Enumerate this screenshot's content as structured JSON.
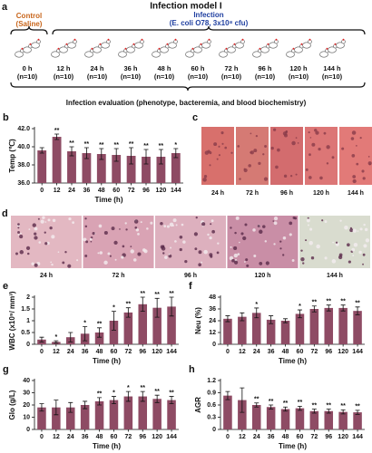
{
  "panel_a": {
    "panel": "a",
    "title": "Infection model I",
    "control": "Control",
    "control_sub": "(Saline)",
    "infection": "Infection",
    "infection_sub": "(E. coli O78, 3x10⁸ cfu)",
    "timepoints": [
      {
        "time": "0 h",
        "n": "(n=10)"
      },
      {
        "time": "12 h",
        "n": "(n=10)"
      },
      {
        "time": "24 h",
        "n": "(n=10)"
      },
      {
        "time": "36 h",
        "n": "(n=10)"
      },
      {
        "time": "48 h",
        "n": "(n=10)"
      },
      {
        "time": "60 h",
        "n": "(n=10)"
      },
      {
        "time": "72 h",
        "n": "(n=10)"
      },
      {
        "time": "96 h",
        "n": "(n=10)"
      },
      {
        "time": "120 h",
        "n": "(n=10)"
      },
      {
        "time": "144 h",
        "n": "(n=10)"
      }
    ],
    "evaluation": "Infection evaluation (phenotype, bacteremia, and blood biochemistry)"
  },
  "chart_data": [
    {
      "type": "bar",
      "panel": "b",
      "xlabel": "Time (h)",
      "ylabel": "Temp (℃)",
      "color": "#8e4b64",
      "categories": [
        0,
        12,
        24,
        36,
        48,
        60,
        72,
        96,
        120,
        144
      ],
      "values": [
        39.6,
        41.1,
        39.5,
        39.3,
        39.2,
        39.1,
        39.0,
        38.9,
        38.9,
        39.3
      ],
      "errors": [
        0.3,
        0.3,
        0.5,
        0.6,
        0.6,
        0.7,
        0.9,
        0.8,
        0.8,
        0.5
      ],
      "annotations": [
        null,
        "**",
        "**",
        "**",
        "**",
        "**",
        "**",
        "**",
        "**",
        "*"
      ],
      "ylim": [
        36,
        42
      ],
      "yticks": [
        {
          "value": 36,
          "label": "36.0"
        },
        {
          "value": 38,
          "label": "38.0"
        },
        {
          "value": 40,
          "label": "40.0"
        },
        {
          "value": 42,
          "label": "42.0"
        }
      ]
    },
    {
      "type": "bar",
      "panel": "e",
      "xlabel": "Time (h)",
      "ylabel": "WBC (x10⁹/ mm³)",
      "color": "#8e4b64",
      "categories": [
        0,
        12,
        24,
        36,
        48,
        60,
        72,
        96,
        120,
        144
      ],
      "values": [
        0.2,
        0.1,
        0.3,
        0.45,
        0.5,
        1.0,
        1.35,
        1.7,
        1.55,
        1.6
      ],
      "errors": [
        0.1,
        0.05,
        0.2,
        0.3,
        0.2,
        0.4,
        0.2,
        0.3,
        0.4,
        0.4
      ],
      "annotations": [
        null,
        "*",
        null,
        "*",
        "**",
        "*",
        "**",
        "**",
        "**",
        "**"
      ],
      "ylim": [
        0,
        2
      ],
      "yticks": [
        0,
        0.5,
        1,
        1.5,
        2
      ]
    },
    {
      "type": "bar",
      "panel": "f",
      "xlabel": "Time (h)",
      "ylabel": "Neu (%)",
      "color": "#8e4b64",
      "categories": [
        0,
        12,
        24,
        36,
        48,
        60,
        72,
        96,
        120,
        144
      ],
      "values": [
        26,
        28,
        32,
        25,
        24,
        31,
        36,
        37,
        37,
        34
      ],
      "errors": [
        3,
        4,
        5,
        4,
        2,
        4,
        3,
        3,
        3,
        4
      ],
      "annotations": [
        null,
        null,
        "*",
        null,
        null,
        "*",
        "**",
        "**",
        "**",
        "**"
      ],
      "ylim": [
        0,
        48
      ],
      "yticks": [
        0,
        12,
        24,
        36,
        48
      ]
    },
    {
      "type": "bar",
      "panel": "g",
      "xlabel": "Time (h)",
      "ylabel": "Glo (g/L)",
      "color": "#8e4b64",
      "categories": [
        0,
        12,
        24,
        36,
        48,
        60,
        72,
        96,
        120,
        144
      ],
      "values": [
        18,
        18,
        18,
        20,
        23,
        24,
        27,
        27,
        25,
        24
      ],
      "errors": [
        3,
        6,
        4,
        3,
        3,
        3,
        4,
        4,
        3,
        3
      ],
      "annotations": [
        null,
        null,
        null,
        null,
        "**",
        "*",
        "*",
        "**",
        "**",
        "**"
      ],
      "ylim": [
        0,
        40
      ],
      "yticks": [
        0,
        10,
        20,
        30,
        40
      ]
    },
    {
      "type": "bar",
      "panel": "h",
      "xlabel": "Time (h)",
      "ylabel": "AGR",
      "color": "#8e4b64",
      "categories": [
        0,
        12,
        24,
        36,
        48,
        60,
        72,
        96,
        120,
        144
      ],
      "values": [
        0.83,
        0.72,
        0.6,
        0.55,
        0.5,
        0.52,
        0.45,
        0.45,
        0.43,
        0.42
      ],
      "errors": [
        0.1,
        0.3,
        0.05,
        0.05,
        0.05,
        0.05,
        0.05,
        0.05,
        0.05,
        0.05
      ],
      "annotations": [
        null,
        null,
        "**",
        "**",
        "**",
        "**",
        "**",
        "**",
        "**",
        "**"
      ],
      "ylim": [
        0,
        1.2
      ],
      "yticks": [
        0,
        0.3,
        0.6,
        0.9,
        1.2
      ]
    }
  ],
  "micrographs": [
    {
      "panel": "c",
      "labels": [
        "24 h",
        "72 h",
        "96 h",
        "120 h",
        "144 h"
      ]
    },
    {
      "panel": "d",
      "labels": [
        "24 h",
        "72 h",
        "96 h",
        "120 h",
        "144 h"
      ]
    }
  ]
}
